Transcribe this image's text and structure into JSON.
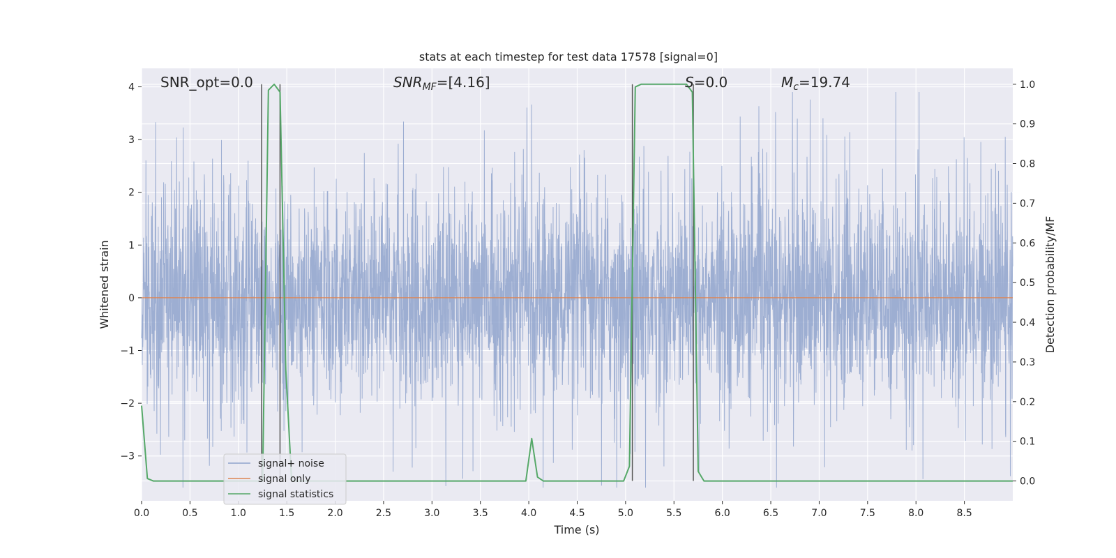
{
  "chart_data": {
    "type": "line",
    "title": "stats at each timestep for test data 17578 [signal=0]",
    "xlabel": "Time (s)",
    "ylabel_left": "Whitened strain",
    "ylabel_right": "Detection probability/MF",
    "xlim": [
      0,
      9
    ],
    "ylim_left": [
      -3.85,
      4.35
    ],
    "ylim_right": [
      -0.05,
      1.04
    ],
    "x_ticks": [
      "0.0",
      "0.5",
      "1.0",
      "1.5",
      "2.0",
      "2.5",
      "3.0",
      "3.5",
      "4.0",
      "4.5",
      "5.0",
      "5.5",
      "6.0",
      "6.5",
      "7.0",
      "7.5",
      "8.0",
      "8.5"
    ],
    "y_left_ticks": [
      "4",
      "3",
      "2",
      "1",
      "0",
      "−1",
      "−2",
      "−3"
    ],
    "y_right_ticks": [
      "1.0",
      "0.9",
      "0.8",
      "0.7",
      "0.6",
      "0.5",
      "0.4",
      "0.3",
      "0.2",
      "0.1",
      "0.0"
    ],
    "grid": true,
    "legend_position": "lower-left",
    "annotations": {
      "snr_opt": "SNR_opt=0.0",
      "snr_mf_main": "SNR",
      "snr_mf_sub": "MF",
      "snr_mf_value": "=[4.16]",
      "s_main": "S",
      "s_value": "=0.0",
      "mc_main": "M",
      "mc_sub": "c",
      "mc_value": "=19.74"
    },
    "vertical_lines_x": [
      1.24,
      1.43,
      5.07,
      5.7
    ],
    "series": [
      {
        "name": "signal+ noise",
        "color": "#8fa3cc",
        "axis": "left",
        "note_values": "dense noise trace sampled at 2048 Hz, approx. ±2 amplitude"
      },
      {
        "name": "signal only",
        "color": "#dd8452",
        "axis": "left",
        "x": [
          0,
          9
        ],
        "y": [
          0,
          0
        ]
      },
      {
        "name": "signal statistics",
        "color": "#55a868",
        "axis": "right",
        "x": [
          0.0,
          0.06,
          0.12,
          1.19,
          1.25,
          1.31,
          1.37,
          1.43,
          1.49,
          1.55,
          3.97,
          4.03,
          4.09,
          4.15,
          4.21,
          4.98,
          5.04,
          5.1,
          5.16,
          5.63,
          5.69,
          5.75,
          5.81,
          5.87,
          9.0
        ],
        "y": [
          0.19,
          0.006,
          0.0,
          0.0,
          0.0,
          0.985,
          1.0,
          0.98,
          0.28,
          0.0,
          0.0,
          0.107,
          0.01,
          0.0,
          0.0,
          0.0,
          0.037,
          0.993,
          1.0,
          1.0,
          0.98,
          0.024,
          0.0,
          0.0,
          0.0
        ]
      }
    ]
  }
}
